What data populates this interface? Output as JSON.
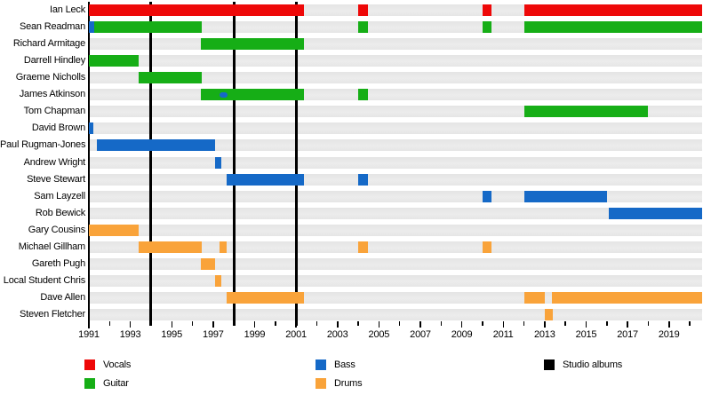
{
  "chart_data": {
    "type": "timeline",
    "description": "Band members timeline (roles over years) with studio album release markers",
    "x_axis": {
      "min": 1991,
      "max": 2020.6,
      "minor_tick_every": 1,
      "labeled_years": [
        1991,
        1993,
        1995,
        1997,
        1999,
        2001,
        2003,
        2005,
        2007,
        2009,
        2011,
        2013,
        2015,
        2017,
        2019
      ],
      "tick_labels": [
        "1991",
        "1993",
        "1995",
        "1997",
        "1999",
        "2001",
        "2003",
        "2005",
        "2007",
        "2009",
        "2011",
        "2013",
        "2015",
        "2017",
        "2019"
      ]
    },
    "roles": {
      "vocals": "#ee0808",
      "guitar": "#16ae16",
      "bass": "#1569c7",
      "drums": "#f9a33a"
    },
    "album_release_years": [
      1994,
      1998,
      2001
    ],
    "members": [
      {
        "name": "Ian Leck",
        "segments": [
          {
            "role": "vocals",
            "start": 1991.0,
            "end": 2001.4
          },
          {
            "role": "vocals",
            "start": 2004.0,
            "end": 2004.45
          },
          {
            "role": "vocals",
            "start": 2010.0,
            "end": 2010.45
          },
          {
            "role": "vocals",
            "start": 2012.0,
            "end": 2020.6
          }
        ]
      },
      {
        "name": "Sean Readman",
        "segments": [
          {
            "role": "bass",
            "start": 1991.0,
            "end": 1991.25
          },
          {
            "role": "guitar",
            "start": 1991.25,
            "end": 1996.45
          },
          {
            "role": "guitar",
            "start": 2004.0,
            "end": 2004.45
          },
          {
            "role": "guitar",
            "start": 2010.0,
            "end": 2010.45
          },
          {
            "role": "guitar",
            "start": 2012.0,
            "end": 2020.6
          }
        ]
      },
      {
        "name": "Richard Armitage",
        "segments": [
          {
            "role": "guitar",
            "start": 1996.4,
            "end": 2001.4
          }
        ]
      },
      {
        "name": "Darrell Hindley",
        "segments": [
          {
            "role": "guitar",
            "start": 1991.0,
            "end": 1993.4
          }
        ]
      },
      {
        "name": "Graeme Nicholls",
        "segments": [
          {
            "role": "guitar",
            "start": 1993.4,
            "end": 1996.45
          }
        ]
      },
      {
        "name": "James Atkinson",
        "segments": [
          {
            "role": "guitar",
            "start": 1996.4,
            "end": 2001.4
          },
          {
            "role": "guitar",
            "start": 2004.0,
            "end": 2004.45
          }
        ],
        "sub_segments": [
          {
            "role": "bass",
            "start": 1997.3,
            "end": 1997.7
          }
        ]
      },
      {
        "name": "Tom Chapman",
        "segments": [
          {
            "role": "guitar",
            "start": 2012.0,
            "end": 2018.0
          }
        ]
      },
      {
        "name": "David Brown",
        "segments": [
          {
            "role": "bass",
            "start": 1991.0,
            "end": 1991.2
          }
        ]
      },
      {
        "name": "Paul Rugman-Jones",
        "segments": [
          {
            "role": "bass",
            "start": 1991.4,
            "end": 1997.1
          }
        ]
      },
      {
        "name": "Andrew Wright",
        "segments": [
          {
            "role": "bass",
            "start": 1997.1,
            "end": 1997.4
          }
        ]
      },
      {
        "name": "Steve Stewart",
        "segments": [
          {
            "role": "bass",
            "start": 1997.65,
            "end": 2001.4
          },
          {
            "role": "bass",
            "start": 2004.0,
            "end": 2004.45
          }
        ]
      },
      {
        "name": "Sam Layzell",
        "segments": [
          {
            "role": "bass",
            "start": 2010.0,
            "end": 2010.45
          },
          {
            "role": "bass",
            "start": 2012.0,
            "end": 2016.0
          }
        ]
      },
      {
        "name": "Rob Bewick",
        "segments": [
          {
            "role": "bass",
            "start": 2016.1,
            "end": 2020.6
          }
        ]
      },
      {
        "name": "Gary Cousins",
        "segments": [
          {
            "role": "drums",
            "start": 1991.0,
            "end": 1993.4
          }
        ]
      },
      {
        "name": "Michael Gillham",
        "segments": [
          {
            "role": "drums",
            "start": 1993.4,
            "end": 1996.45
          },
          {
            "role": "drums",
            "start": 1997.3,
            "end": 1997.65
          },
          {
            "role": "drums",
            "start": 2004.0,
            "end": 2004.45
          },
          {
            "role": "drums",
            "start": 2010.0,
            "end": 2010.45
          }
        ]
      },
      {
        "name": "Gareth Pugh",
        "segments": [
          {
            "role": "drums",
            "start": 1996.4,
            "end": 1997.1
          }
        ]
      },
      {
        "name": "Local Student Chris",
        "segments": [
          {
            "role": "drums",
            "start": 1997.1,
            "end": 1997.4
          }
        ]
      },
      {
        "name": "Dave Allen",
        "segments": [
          {
            "role": "drums",
            "start": 1997.65,
            "end": 2001.4
          },
          {
            "role": "drums",
            "start": 2012.0,
            "end": 2013.0
          },
          {
            "role": "drums",
            "start": 2013.35,
            "end": 2020.6
          }
        ]
      },
      {
        "name": "Steven Fletcher",
        "segments": [
          {
            "role": "drums",
            "start": 2013.0,
            "end": 2013.4
          }
        ]
      }
    ],
    "legend": [
      {
        "label": "Vocals",
        "color": "#ee0808"
      },
      {
        "label": "Guitar",
        "color": "#16ae16"
      },
      {
        "label": "Bass",
        "color": "#1569c7"
      },
      {
        "label": "Drums",
        "color": "#f9a33a"
      },
      {
        "label": "Studio albums",
        "color": "#000000"
      }
    ]
  }
}
